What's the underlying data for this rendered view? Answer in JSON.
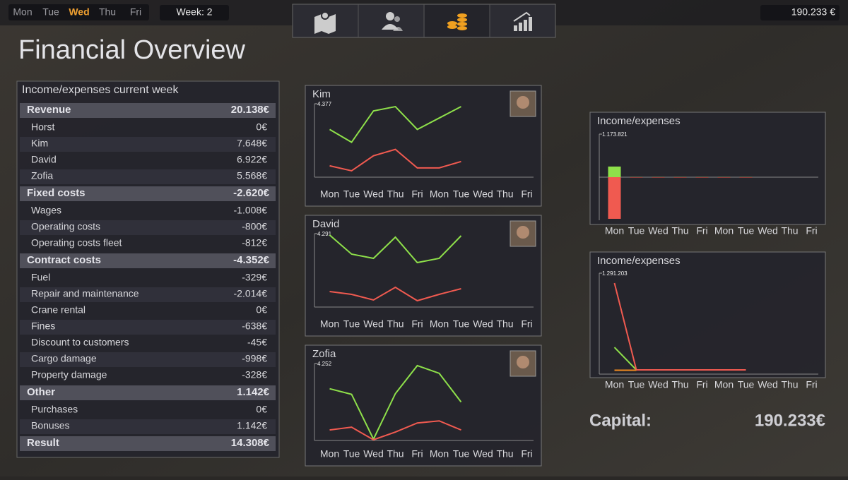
{
  "top_bar": {
    "days": [
      {
        "label": "Mon"
      },
      {
        "label": "Tue"
      },
      {
        "label": "Wed",
        "active": true
      },
      {
        "label": "Thu"
      },
      {
        "label": "Fri"
      }
    ],
    "week": "Week: 2",
    "money": "190.233 €"
  },
  "title": "Financial Overview",
  "statement": {
    "title": "Income/expenses current week",
    "sections": [
      {
        "name": "Revenue",
        "total": "20.138€",
        "rows": [
          {
            "label": "Horst",
            "value": "0€"
          },
          {
            "label": "Kim",
            "value": "7.648€"
          },
          {
            "label": "David",
            "value": "6.922€"
          },
          {
            "label": "Zofia",
            "value": "5.568€"
          }
        ]
      },
      {
        "name": "Fixed costs",
        "total": "-2.620€",
        "rows": [
          {
            "label": "Wages",
            "value": "-1.008€"
          },
          {
            "label": "Operating costs",
            "value": "-800€"
          },
          {
            "label": "Operating costs fleet",
            "value": "-812€"
          }
        ]
      },
      {
        "name": "Contract costs",
        "total": "-4.352€",
        "rows": [
          {
            "label": "Fuel",
            "value": "-329€"
          },
          {
            "label": "Repair and maintenance",
            "value": "-2.014€"
          },
          {
            "label": "Crane rental",
            "value": "0€"
          },
          {
            "label": "Fines",
            "value": "-638€"
          },
          {
            "label": "Discount to customers",
            "value": "-45€"
          },
          {
            "label": "Cargo damage",
            "value": "-998€"
          },
          {
            "label": "Property damage",
            "value": "-328€"
          }
        ]
      },
      {
        "name": "Other",
        "total": "1.142€",
        "rows": [
          {
            "label": "Purchases",
            "value": "0€"
          },
          {
            "label": "Bonuses",
            "value": "1.142€"
          }
        ]
      }
    ],
    "result": {
      "label": "Result",
      "value": "14.308€"
    }
  },
  "driver_charts": [
    {
      "type": "line",
      "title": "Kim",
      "categories": [
        "Mon",
        "Tue",
        "Wed",
        "Thu",
        "Fri",
        "Mon",
        "Tue",
        "Wed",
        "Thu",
        "Fri"
      ],
      "ylim": [
        0,
        4377
      ],
      "yticks": [
        {
          "value": 4377,
          "label": "4.377"
        }
      ],
      "series": [
        {
          "color": "#8ee04a",
          "values": [
            2847,
            2082,
            3952,
            4207,
            2847,
            3527,
            4207,
            null,
            null,
            null
          ]
        },
        {
          "color": "#f05a50",
          "values": [
            680,
            382,
            1275,
            1657,
            552,
            552,
            935,
            null,
            null,
            null
          ]
        }
      ]
    },
    {
      "type": "line",
      "title": "David",
      "categories": [
        "Mon",
        "Tue",
        "Wed",
        "Thu",
        "Fri",
        "Mon",
        "Tue",
        "Wed",
        "Thu",
        "Fri"
      ],
      "ylim": [
        0,
        4291
      ],
      "yticks": [
        {
          "value": 4291,
          "label": "4.291"
        }
      ],
      "series": [
        {
          "color": "#8ee04a",
          "values": [
            4209,
            3095,
            2847,
            4085,
            2599,
            2847,
            4167,
            null,
            null,
            null
          ]
        },
        {
          "color": "#f05a50",
          "values": [
            908,
            743,
            413,
            1155,
            371,
            743,
            1073,
            null,
            null,
            null
          ]
        }
      ]
    },
    {
      "type": "line",
      "title": "Zofia",
      "categories": [
        "Mon",
        "Tue",
        "Wed",
        "Thu",
        "Fri",
        "Mon",
        "Tue",
        "Wed",
        "Thu",
        "Fri"
      ],
      "ylim": [
        0,
        4252
      ],
      "yticks": [
        {
          "value": 4252,
          "label": "4.252"
        }
      ],
      "series": [
        {
          "color": "#8ee04a",
          "values": [
            2860,
            2551,
            77,
            2590,
            4136,
            3711,
            2126,
            null,
            null,
            null
          ]
        },
        {
          "color": "#f05a50",
          "values": [
            580,
            734,
            39,
            464,
            966,
            1082,
            580,
            null,
            null,
            null
          ]
        }
      ]
    }
  ],
  "company_charts": [
    {
      "type": "bar",
      "title": "Income/expenses",
      "categories": [
        "Mon",
        "Tue",
        "Wed",
        "Thu",
        "Fri",
        "Mon",
        "Tue",
        "Wed",
        "Thu",
        "Fri"
      ],
      "ylim": [
        -1173821,
        1173821
      ],
      "yticks": [
        {
          "value": 1173821,
          "label": "1.173.821"
        }
      ],
      "series": [
        {
          "color": "#8ee04a",
          "values": [
            290000,
            3000,
            3000,
            3000,
            3000,
            3000,
            3000,
            null,
            null,
            null
          ]
        },
        {
          "color": "#f05a50",
          "values": [
            -1135000,
            -3000,
            -3000,
            -3000,
            -3000,
            -3000,
            -3000,
            null,
            null,
            null
          ]
        }
      ]
    },
    {
      "type": "line",
      "title": "Income/expenses",
      "categories": [
        "Mon",
        "Tue",
        "Wed",
        "Thu",
        "Fri",
        "Mon",
        "Tue",
        "Wed",
        "Thu",
        "Fri"
      ],
      "ylim": [
        0,
        1291203
      ],
      "yticks": [
        {
          "value": 1291203,
          "label": "1.291.203"
        }
      ],
      "series": [
        {
          "color": "#8ee04a",
          "values": [
            343000,
            54000,
            54000,
            54000,
            54000,
            54000,
            54000,
            null,
            null,
            null
          ]
        },
        {
          "color": "#f05a50",
          "values": [
            1164800,
            54000,
            54000,
            54000,
            54000,
            54000,
            54000,
            null,
            null,
            null
          ]
        },
        {
          "color": "#f08a20",
          "values": [
            50000,
            50000,
            null,
            null,
            null,
            null,
            null,
            null,
            null,
            null
          ]
        }
      ]
    }
  ],
  "capital": {
    "label": "Capital:",
    "value": "190.233€"
  }
}
